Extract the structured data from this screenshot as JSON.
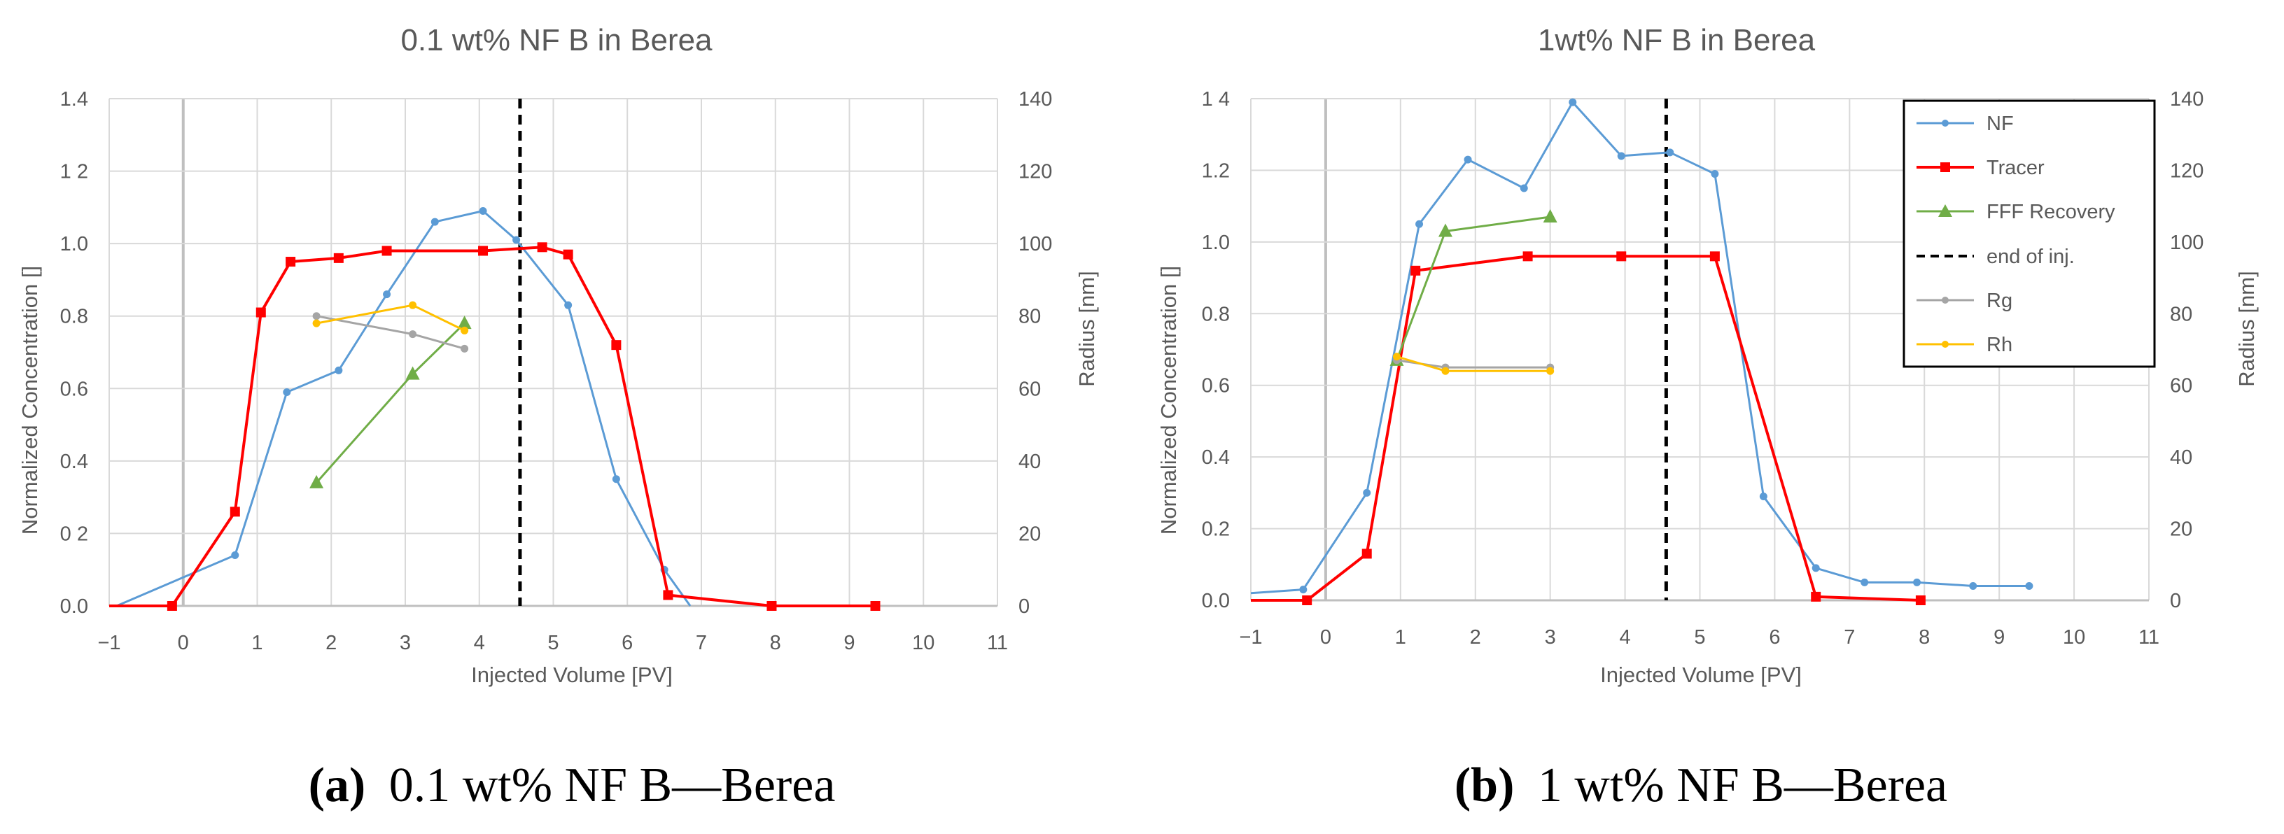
{
  "chart_data": [
    {
      "type": "line",
      "title": "0.1 wt% NF B in Berea",
      "xlabel": "Injected Volume [PV]",
      "ylabel": "Normalized Concentration []",
      "y2label": "Radius [nm]",
      "xlim": [
        -1,
        11
      ],
      "ylim": [
        0,
        1.4
      ],
      "y2lim": [
        0,
        140
      ],
      "x_ticks": [
        -1,
        0,
        1,
        2,
        3,
        4,
        5,
        6,
        7,
        8,
        9,
        10,
        11
      ],
      "y_ticks": [
        0,
        0.2,
        0.4,
        0.6,
        0.8,
        1.0,
        1.2,
        1.4
      ],
      "y_tick_labels": [
        "0.0",
        "0 2",
        "0.4",
        "0.6",
        "0.8",
        "1.0",
        "1 2",
        "1.4"
      ],
      "y2_ticks": [
        0,
        20,
        40,
        60,
        80,
        100,
        120,
        140
      ],
      "end_of_injection": 4.55,
      "legend": false,
      "series": [
        {
          "name": "NF",
          "axis": "left",
          "color": "#5B9BD5",
          "marker": "dot",
          "points": [
            [
              -0.9,
              0.0
            ],
            [
              0.7,
              0.14
            ],
            [
              1.4,
              0.59
            ],
            [
              2.1,
              0.65
            ],
            [
              2.75,
              0.86
            ],
            [
              3.4,
              1.06
            ],
            [
              4.05,
              1.09
            ],
            [
              4.5,
              1.01
            ],
            [
              5.2,
              0.83
            ],
            [
              5.85,
              0.35
            ],
            [
              6.5,
              0.1
            ],
            [
              6.85,
              0.0
            ]
          ],
          "marker_points": [
            [
              0.7,
              0.14
            ],
            [
              1.4,
              0.59
            ],
            [
              2.1,
              0.65
            ],
            [
              2.75,
              0.86
            ],
            [
              3.4,
              1.06
            ],
            [
              4.05,
              1.09
            ],
            [
              4.5,
              1.01
            ],
            [
              5.2,
              0.83
            ],
            [
              5.85,
              0.35
            ],
            [
              6.5,
              0.1
            ]
          ]
        },
        {
          "name": "Tracer",
          "axis": "left",
          "color": "#FF0000",
          "marker": "square",
          "points": [
            [
              -1,
              0.0
            ],
            [
              -0.15,
              0.0
            ],
            [
              0.7,
              0.26
            ],
            [
              1.05,
              0.81
            ],
            [
              1.45,
              0.95
            ],
            [
              2.1,
              0.96
            ],
            [
              2.75,
              0.98
            ],
            [
              4.05,
              0.98
            ],
            [
              4.85,
              0.99
            ],
            [
              5.2,
              0.97
            ],
            [
              5.85,
              0.72
            ],
            [
              6.55,
              0.03
            ],
            [
              7.95,
              0.0
            ],
            [
              9.35,
              0.0
            ]
          ],
          "marker_points": [
            [
              -0.15,
              0.0
            ],
            [
              0.7,
              0.26
            ],
            [
              1.05,
              0.81
            ],
            [
              1.45,
              0.95
            ],
            [
              2.1,
              0.96
            ],
            [
              2.75,
              0.98
            ],
            [
              4.05,
              0.98
            ],
            [
              4.85,
              0.99
            ],
            [
              5.2,
              0.97
            ],
            [
              5.85,
              0.72
            ],
            [
              6.55,
              0.03
            ],
            [
              7.95,
              0.0
            ],
            [
              9.35,
              0.0
            ]
          ]
        },
        {
          "name": "FFF Recovery",
          "axis": "left",
          "color": "#70AD47",
          "marker": "triangle",
          "points": [
            [
              1.8,
              0.34
            ],
            [
              3.1,
              0.64
            ],
            [
              3.8,
              0.78
            ]
          ],
          "marker_points": [
            [
              1.8,
              0.34
            ],
            [
              3.1,
              0.64
            ],
            [
              3.8,
              0.78
            ]
          ]
        },
        {
          "name": "Rg",
          "axis": "right",
          "color": "#A5A5A5",
          "marker": "dot",
          "points": [
            [
              1.8,
              80
            ],
            [
              3.1,
              75
            ],
            [
              3.8,
              71
            ]
          ],
          "marker_points": [
            [
              1.8,
              80
            ],
            [
              3.1,
              75
            ],
            [
              3.8,
              71
            ]
          ]
        },
        {
          "name": "Rh",
          "axis": "right",
          "color": "#FFC000",
          "marker": "dot",
          "points": [
            [
              1.8,
              78
            ],
            [
              3.1,
              83
            ],
            [
              3.8,
              76
            ]
          ],
          "marker_points": [
            [
              1.8,
              78
            ],
            [
              3.1,
              83
            ],
            [
              3.8,
              76
            ]
          ]
        }
      ],
      "caption_label": "(a)",
      "caption_text": "0.1 wt% NF B—Berea"
    },
    {
      "type": "line",
      "title": "1wt% NF B in Berea",
      "xlabel": "Injected Volume [PV]",
      "ylabel": "Normalized Concentration []",
      "y2label": "Radius [nm]",
      "xlim": [
        -1,
        11
      ],
      "ylim": [
        0,
        1.4
      ],
      "y2lim": [
        0,
        140
      ],
      "x_ticks": [
        -1,
        0,
        1,
        2,
        3,
        4,
        5,
        6,
        7,
        8,
        9,
        10,
        11
      ],
      "y_ticks": [
        0,
        0.2,
        0.4,
        0.6,
        0.8,
        1.0,
        1.2,
        1.4
      ],
      "y_tick_labels": [
        "0.0",
        "0.2",
        "0.4",
        "0.6",
        "0.8",
        "1.0",
        "1.2",
        "1 4"
      ],
      "y2_ticks": [
        0,
        20,
        40,
        60,
        80,
        100,
        120,
        140
      ],
      "end_of_injection": 4.55,
      "legend": true,
      "legend_entries": [
        "NF",
        "Tracer",
        "FFF Recovery",
        "end of inj.",
        "Rg",
        "Rh"
      ],
      "series": [
        {
          "name": "NF",
          "axis": "left",
          "color": "#5B9BD5",
          "marker": "dot",
          "points": [
            [
              -1,
              0.02
            ],
            [
              -0.3,
              0.03
            ],
            [
              0.55,
              0.3
            ],
            [
              1.25,
              1.05
            ],
            [
              1.9,
              1.23
            ],
            [
              2.65,
              1.15
            ],
            [
              3.3,
              1.39
            ],
            [
              3.95,
              1.24
            ],
            [
              4.6,
              1.25
            ],
            [
              5.2,
              1.19
            ],
            [
              5.85,
              0.29
            ],
            [
              6.55,
              0.09
            ],
            [
              7.2,
              0.05
            ],
            [
              7.9,
              0.05
            ],
            [
              8.65,
              0.04
            ],
            [
              9.4,
              0.04
            ]
          ],
          "marker_points": [
            [
              -0.3,
              0.03
            ],
            [
              0.55,
              0.3
            ],
            [
              1.25,
              1.05
            ],
            [
              1.9,
              1.23
            ],
            [
              2.65,
              1.15
            ],
            [
              3.3,
              1.39
            ],
            [
              3.95,
              1.24
            ],
            [
              4.6,
              1.25
            ],
            [
              5.2,
              1.19
            ],
            [
              5.85,
              0.29
            ],
            [
              6.55,
              0.09
            ],
            [
              7.2,
              0.05
            ],
            [
              7.9,
              0.05
            ],
            [
              8.65,
              0.04
            ],
            [
              9.4,
              0.04
            ]
          ]
        },
        {
          "name": "Tracer",
          "axis": "left",
          "color": "#FF0000",
          "marker": "square",
          "points": [
            [
              -1,
              0.0
            ],
            [
              -0.25,
              0.0
            ],
            [
              0.55,
              0.13
            ],
            [
              1.2,
              0.92
            ],
            [
              2.7,
              0.96
            ],
            [
              3.95,
              0.96
            ],
            [
              5.2,
              0.96
            ],
            [
              6.55,
              0.01
            ],
            [
              7.95,
              0.0
            ]
          ],
          "marker_points": [
            [
              -0.25,
              0.0
            ],
            [
              0.55,
              0.13
            ],
            [
              1.2,
              0.92
            ],
            [
              2.7,
              0.96
            ],
            [
              3.95,
              0.96
            ],
            [
              5.2,
              0.96
            ],
            [
              6.55,
              0.01
            ],
            [
              7.95,
              0.0
            ]
          ]
        },
        {
          "name": "FFF Recovery",
          "axis": "left",
          "color": "#70AD47",
          "marker": "triangle",
          "points": [
            [
              0.95,
              0.67
            ],
            [
              1.6,
              1.03
            ],
            [
              3.0,
              1.07
            ]
          ],
          "marker_points": [
            [
              0.95,
              0.67
            ],
            [
              1.6,
              1.03
            ],
            [
              3.0,
              1.07
            ]
          ]
        },
        {
          "name": "Rg",
          "axis": "right",
          "color": "#A5A5A5",
          "marker": "dot",
          "points": [
            [
              0.95,
              67
            ],
            [
              1.6,
              65
            ],
            [
              3.0,
              65
            ]
          ],
          "marker_points": [
            [
              0.95,
              67
            ],
            [
              1.6,
              65
            ],
            [
              3.0,
              65
            ]
          ]
        },
        {
          "name": "Rh",
          "axis": "right",
          "color": "#FFC000",
          "marker": "dot",
          "points": [
            [
              0.95,
              68
            ],
            [
              1.6,
              64
            ],
            [
              3.0,
              64
            ]
          ],
          "marker_points": [
            [
              0.95,
              68
            ],
            [
              1.6,
              64
            ],
            [
              3.0,
              64
            ]
          ]
        }
      ],
      "caption_label": "(b)",
      "caption_text": "1 wt% NF B—Berea"
    }
  ]
}
